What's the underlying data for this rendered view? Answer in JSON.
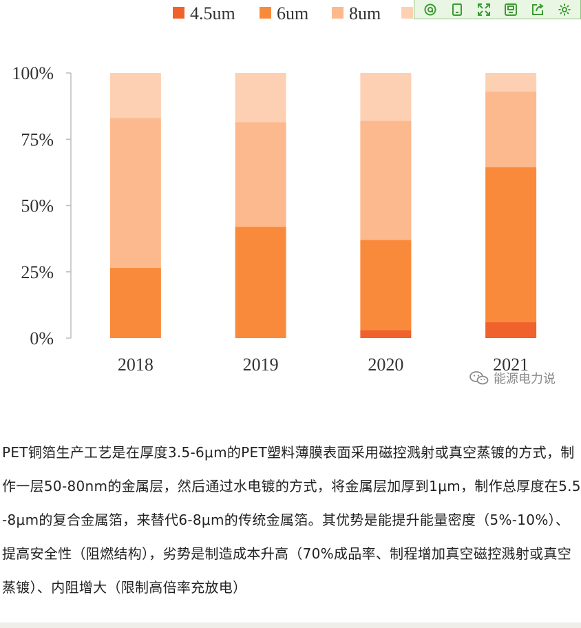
{
  "toolbar": {
    "icons": [
      "search-icon",
      "bookmark-icon",
      "expand-icon",
      "save-icon",
      "share-icon",
      "settings-icon"
    ],
    "accent": "#8dc47f",
    "background": "#e9f6e4"
  },
  "chart_data": {
    "type": "bar",
    "stacked": true,
    "categories": [
      "2018",
      "2019",
      "2020",
      "2021"
    ],
    "series": [
      {
        "name": "4.5um",
        "color": "#f0622b",
        "values": [
          0,
          0,
          3,
          6
        ]
      },
      {
        "name": "6um",
        "color": "#fa8a3b",
        "values": [
          26.5,
          42,
          34,
          58.5
        ]
      },
      {
        "name": "8um",
        "color": "#fdb98e",
        "values": [
          56.5,
          39.5,
          45,
          28.5
        ]
      },
      {
        "name": "",
        "color": "#fdd0b3",
        "values": [
          17,
          18.5,
          18,
          7
        ]
      }
    ],
    "yticks": [
      "0%",
      "25%",
      "50%",
      "75%",
      "100%"
    ],
    "ylim": [
      0,
      100
    ],
    "legend_position": "top",
    "grid": false
  },
  "watermark": {
    "text": "能源电力说",
    "icon": "wechat-icon"
  },
  "article": {
    "paragraph": "PET铜箔生产工艺是在厚度3.5-6μm的PET塑料薄膜表面采用磁控溅射或真空蒸镀的方式，制作一层50-80nm的金属层，然后通过水电镀的方式，将金属层加厚到1μm，制作总厚度在5.5-8μm的复合金属箔，来替代6-8μm的传统金属箔。其优势是能提升能量密度（5%-10%）、提高安全性（阻燃结构），劣势是制造成本升高（70%成品率、制程增加真空磁控溅射或真空蒸镀）、内阻增大（限制高倍率充放电）"
  }
}
